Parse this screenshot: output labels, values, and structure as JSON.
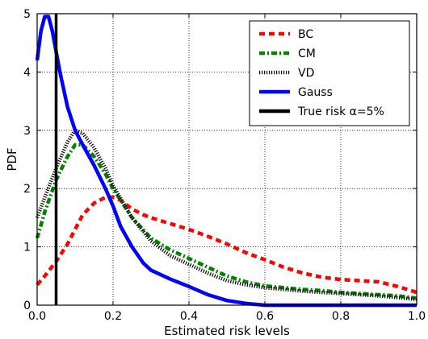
{
  "chart_data": {
    "type": "line",
    "title": "",
    "xlabel": "Estimated risk levels",
    "ylabel": "PDF",
    "xlim": [
      0.0,
      1.0
    ],
    "ylim": [
      0,
      5
    ],
    "grid": true,
    "legend_position": "top-right",
    "x_ticks": [
      "0.0",
      "0.2",
      "0.4",
      "0.6",
      "0.8",
      "1.0"
    ],
    "x_tick_values": [
      0.0,
      0.2,
      0.4,
      0.6,
      0.8,
      1.0
    ],
    "y_ticks": [
      "0",
      "1",
      "2",
      "3",
      "4",
      "5"
    ],
    "y_tick_values": [
      0,
      1,
      2,
      3,
      4,
      5
    ],
    "series": [
      {
        "name": "BC",
        "color": "#ff0000",
        "style": "dashed",
        "points": [
          [
            0.0,
            0.35
          ],
          [
            0.02,
            0.5
          ],
          [
            0.05,
            0.75
          ],
          [
            0.08,
            1.05
          ],
          [
            0.1,
            1.3
          ],
          [
            0.12,
            1.55
          ],
          [
            0.15,
            1.75
          ],
          [
            0.18,
            1.85
          ],
          [
            0.2,
            1.85
          ],
          [
            0.22,
            1.8
          ],
          [
            0.25,
            1.65
          ],
          [
            0.28,
            1.55
          ],
          [
            0.3,
            1.5
          ],
          [
            0.35,
            1.4
          ],
          [
            0.4,
            1.3
          ],
          [
            0.45,
            1.18
          ],
          [
            0.5,
            1.05
          ],
          [
            0.55,
            0.9
          ],
          [
            0.6,
            0.78
          ],
          [
            0.65,
            0.65
          ],
          [
            0.7,
            0.55
          ],
          [
            0.75,
            0.48
          ],
          [
            0.8,
            0.44
          ],
          [
            0.85,
            0.42
          ],
          [
            0.9,
            0.4
          ],
          [
            0.95,
            0.32
          ],
          [
            1.0,
            0.22
          ]
        ]
      },
      {
        "name": "CM",
        "color": "#008000",
        "style": "dashdot",
        "points": [
          [
            0.0,
            1.15
          ],
          [
            0.02,
            1.6
          ],
          [
            0.05,
            2.15
          ],
          [
            0.08,
            2.55
          ],
          [
            0.1,
            2.75
          ],
          [
            0.12,
            2.75
          ],
          [
            0.15,
            2.55
          ],
          [
            0.18,
            2.25
          ],
          [
            0.2,
            2.0
          ],
          [
            0.25,
            1.5
          ],
          [
            0.3,
            1.15
          ],
          [
            0.35,
            0.95
          ],
          [
            0.4,
            0.8
          ],
          [
            0.45,
            0.65
          ],
          [
            0.5,
            0.5
          ],
          [
            0.55,
            0.4
          ],
          [
            0.6,
            0.33
          ],
          [
            0.65,
            0.3
          ],
          [
            0.7,
            0.27
          ],
          [
            0.75,
            0.25
          ],
          [
            0.8,
            0.22
          ],
          [
            0.85,
            0.2
          ],
          [
            0.9,
            0.18
          ],
          [
            0.95,
            0.16
          ],
          [
            1.0,
            0.12
          ]
        ]
      },
      {
        "name": "VD",
        "color": "#000000",
        "style": "dotted",
        "points": [
          [
            0.0,
            1.5
          ],
          [
            0.02,
            1.85
          ],
          [
            0.05,
            2.35
          ],
          [
            0.08,
            2.8
          ],
          [
            0.1,
            3.0
          ],
          [
            0.12,
            2.95
          ],
          [
            0.15,
            2.7
          ],
          [
            0.18,
            2.35
          ],
          [
            0.2,
            2.05
          ],
          [
            0.25,
            1.5
          ],
          [
            0.3,
            1.1
          ],
          [
            0.35,
            0.85
          ],
          [
            0.4,
            0.7
          ],
          [
            0.45,
            0.55
          ],
          [
            0.5,
            0.42
          ],
          [
            0.55,
            0.35
          ],
          [
            0.6,
            0.3
          ],
          [
            0.65,
            0.27
          ],
          [
            0.7,
            0.24
          ],
          [
            0.75,
            0.22
          ],
          [
            0.8,
            0.2
          ],
          [
            0.85,
            0.18
          ],
          [
            0.9,
            0.16
          ],
          [
            0.95,
            0.13
          ],
          [
            1.0,
            0.1
          ]
        ]
      },
      {
        "name": "Gauss",
        "color": "#0000ff",
        "style": "solid",
        "points": [
          [
            0.0,
            4.2
          ],
          [
            0.01,
            4.7
          ],
          [
            0.02,
            4.95
          ],
          [
            0.03,
            4.95
          ],
          [
            0.04,
            4.7
          ],
          [
            0.05,
            4.35
          ],
          [
            0.06,
            4.0
          ],
          [
            0.08,
            3.4
          ],
          [
            0.1,
            3.0
          ],
          [
            0.12,
            2.75
          ],
          [
            0.15,
            2.4
          ],
          [
            0.18,
            2.0
          ],
          [
            0.2,
            1.7
          ],
          [
            0.22,
            1.35
          ],
          [
            0.25,
            1.0
          ],
          [
            0.28,
            0.72
          ],
          [
            0.3,
            0.6
          ],
          [
            0.35,
            0.45
          ],
          [
            0.4,
            0.32
          ],
          [
            0.45,
            0.18
          ],
          [
            0.5,
            0.08
          ],
          [
            0.55,
            0.03
          ],
          [
            0.6,
            0.0
          ],
          [
            0.7,
            0.0
          ],
          [
            0.8,
            0.0
          ],
          [
            0.9,
            0.0
          ],
          [
            1.0,
            0.0
          ]
        ]
      },
      {
        "name": "True risk α=5%",
        "color": "#000000",
        "style": "solid",
        "points": [
          [
            0.05,
            0.0
          ],
          [
            0.05,
            5.0
          ]
        ]
      }
    ]
  }
}
